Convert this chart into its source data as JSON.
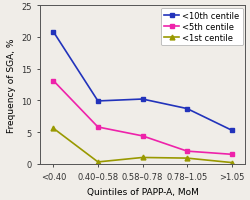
{
  "categories": [
    "<0.40",
    "0.40–0.58",
    "0.58–0.78",
    "0.78–1.05",
    ">1.05"
  ],
  "series": [
    {
      "label": "<10th centile",
      "values": [
        20.8,
        9.9,
        10.2,
        8.7,
        5.3
      ],
      "color": "#2233bb",
      "marker": "s",
      "markersize": 3.5
    },
    {
      "label": "<5th centile",
      "values": [
        13.1,
        5.8,
        4.4,
        2.0,
        1.5
      ],
      "color": "#ee22aa",
      "marker": "s",
      "markersize": 3.5
    },
    {
      "label": "<1st centile",
      "values": [
        5.6,
        0.3,
        1.0,
        0.9,
        0.2
      ],
      "color": "#999900",
      "marker": "^",
      "markersize": 3.5
    }
  ],
  "xlabel": "Quintiles of PAPP-A, MoM",
  "ylabel": "Frequency of SGA, %",
  "ylim": [
    0,
    25
  ],
  "yticks": [
    0,
    5,
    10,
    15,
    20,
    25
  ],
  "background_color": "#f0ede8",
  "axis_fontsize": 6.5,
  "tick_fontsize": 6.0,
  "legend_fontsize": 6.0,
  "linewidth": 1.2
}
